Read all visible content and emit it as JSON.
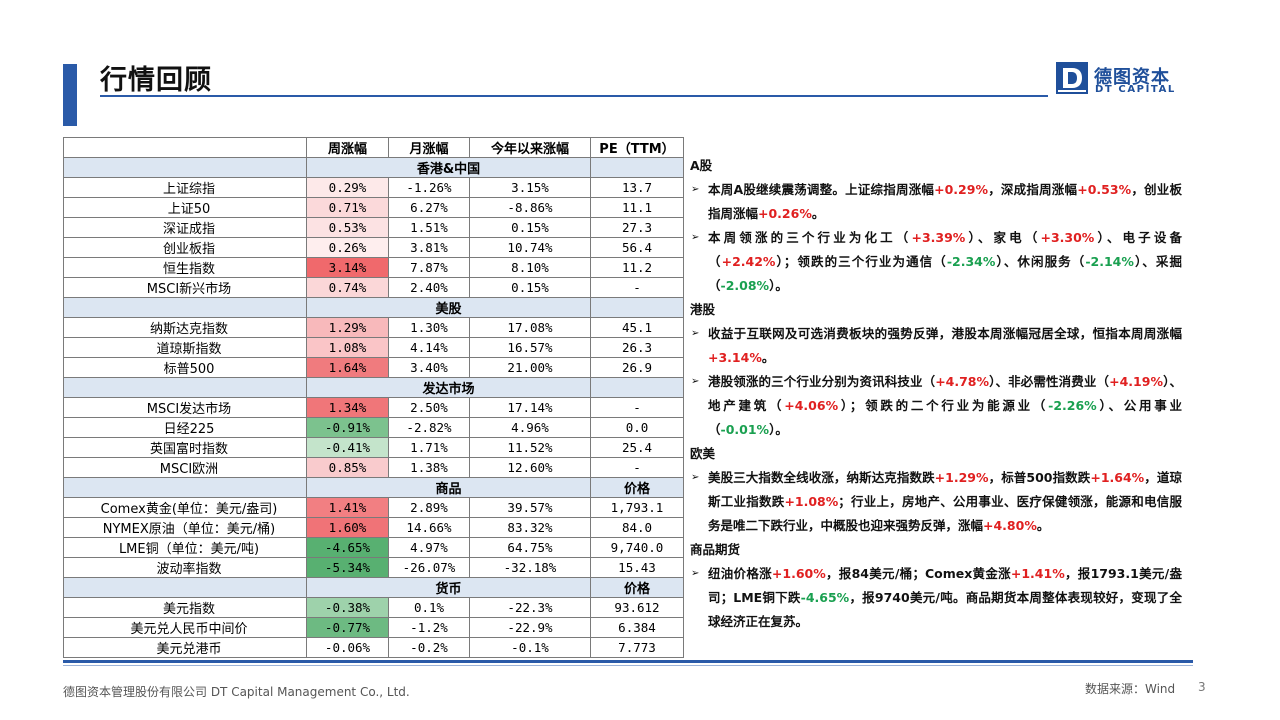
{
  "title": "行情回顾",
  "logo": {
    "cn": "德图资本",
    "en": "DT CAPITAL",
    "mark_color": "#1f4f9a"
  },
  "table": {
    "headers": [
      "",
      "周涨幅",
      "月涨幅",
      "今年以来涨幅",
      "PE（TTM）"
    ],
    "sections": [
      {
        "title": "香港&中国",
        "last_header": "",
        "rows": [
          {
            "name": "上证综指",
            "w": "0.29%",
            "m": "-1.26%",
            "y": "3.15%",
            "pe": "13.7",
            "wc": "#fde9e9"
          },
          {
            "name": "上证50",
            "w": "0.71%",
            "m": "6.27%",
            "y": "-8.86%",
            "pe": "11.1",
            "wc": "#fbd9da"
          },
          {
            "name": "深证成指",
            "w": "0.53%",
            "m": "1.51%",
            "y": "0.15%",
            "pe": "27.3",
            "wc": "#fce2e3"
          },
          {
            "name": "创业板指",
            "w": "0.26%",
            "m": "3.81%",
            "y": "10.74%",
            "pe": "56.4",
            "wc": "#feeeee"
          },
          {
            "name": "恒生指数",
            "w": "3.14%",
            "m": "7.87%",
            "y": "8.10%",
            "pe": "11.2",
            "wc": "#f0696c"
          },
          {
            "name": "MSCI新兴市场",
            "w": "0.74%",
            "m": "2.40%",
            "y": "0.15%",
            "pe": "-",
            "wc": "#fbd7d8"
          }
        ]
      },
      {
        "title": "美股",
        "last_header": "",
        "rows": [
          {
            "name": "纳斯达克指数",
            "w": "1.29%",
            "m": "1.30%",
            "y": "17.08%",
            "pe": "45.1",
            "wc": "#f8b9bb"
          },
          {
            "name": "道琼斯指数",
            "w": "1.08%",
            "m": "4.14%",
            "y": "16.57%",
            "pe": "26.3",
            "wc": "#fac5c7"
          },
          {
            "name": "标普500",
            "w": "1.64%",
            "m": "3.40%",
            "y": "21.00%",
            "pe": "26.9",
            "wc": "#f07b7e"
          }
        ]
      },
      {
        "title": "发达市场",
        "last_header": "",
        "rows": [
          {
            "name": "MSCI发达市场",
            "w": "1.34%",
            "m": "2.50%",
            "y": "17.14%",
            "pe": "-",
            "wc": "#f07679"
          },
          {
            "name": "日经225",
            "w": "-0.91%",
            "m": "-2.82%",
            "y": "4.96%",
            "pe": "0.0",
            "wc": "#7cc28e"
          },
          {
            "name": "英国富时指数",
            "w": "-0.41%",
            "m": "1.71%",
            "y": "11.52%",
            "pe": "25.4",
            "wc": "#c4e4cb"
          },
          {
            "name": "MSCI欧洲",
            "w": "0.85%",
            "m": "1.38%",
            "y": "12.60%",
            "pe": "-",
            "wc": "#f9cbcd"
          }
        ]
      },
      {
        "title": "商品",
        "last_header": "价格",
        "rows": [
          {
            "name": "Comex黄金(单位：美元/盎司)",
            "w": "1.41%",
            "m": "2.89%",
            "y": "39.57%",
            "pe": "1,793.1",
            "wc": "#f27f82"
          },
          {
            "name": "NYMEX原油（单位：美元/桶)",
            "w": "1.60%",
            "m": "14.66%",
            "y": "83.32%",
            "pe": "84.0",
            "wc": "#f07377"
          },
          {
            "name": "LME铜（单位：美元/吨)",
            "w": "-4.65%",
            "m": "4.97%",
            "y": "64.75%",
            "pe": "9,740.0",
            "wc": "#58b071"
          },
          {
            "name": "波动率指数",
            "w": "-5.34%",
            "m": "-26.07%",
            "y": "-32.18%",
            "pe": "15.43",
            "wc": "#58b071"
          }
        ]
      },
      {
        "title": "货币",
        "last_header": "价格",
        "rows": [
          {
            "name": "美元指数",
            "w": "-0.38%",
            "m": "0.1%",
            "y": "-22.3%",
            "pe": "93.612",
            "wc": "#9ed2ab"
          },
          {
            "name": "美元兑人民币中间价",
            "w": "-0.77%",
            "m": "-1.2%",
            "y": "-22.9%",
            "pe": "6.384",
            "wc": "#6dba82"
          },
          {
            "name": "美元兑港币",
            "w": "-0.06%",
            "m": "-0.2%",
            "y": "-0.1%",
            "pe": "7.773",
            "wc": "#ffffff"
          }
        ]
      }
    ]
  },
  "commentary": [
    {
      "head": "A股",
      "bullets": [
        [
          [
            "本周A股继续震荡调整。上证综指周涨幅",
            ""
          ],
          [
            "+0.29%",
            "up"
          ],
          [
            "，深成指周涨幅",
            ""
          ],
          [
            "+0.53%",
            "up"
          ],
          [
            "，创业板指周涨幅",
            ""
          ],
          [
            "+0.26%",
            "up"
          ],
          [
            "。",
            ""
          ]
        ],
        [
          [
            "本周领涨的三个行业为化工（",
            ""
          ],
          [
            "+3.39%",
            "up"
          ],
          [
            "）、家电（",
            ""
          ],
          [
            "+3.30%",
            "up"
          ],
          [
            "）、电子设备（",
            ""
          ],
          [
            "+2.42%",
            "up"
          ],
          [
            "）；领跌的三个行业为通信（",
            ""
          ],
          [
            "-2.34%",
            "down"
          ],
          [
            "）、休闲服务（",
            ""
          ],
          [
            "-2.14%",
            "down"
          ],
          [
            "）、采掘（",
            ""
          ],
          [
            "-2.08%",
            "down"
          ],
          [
            "）。",
            ""
          ]
        ]
      ]
    },
    {
      "head": "港股",
      "bullets": [
        [
          [
            "收益于互联网及可选消费板块的强势反弹，港股本周涨幅冠居全球，恒指本周周涨幅",
            ""
          ],
          [
            "+3.14%",
            "up"
          ],
          [
            "。",
            ""
          ]
        ],
        [
          [
            "港股领涨的三个行业分别为资讯科技业（",
            ""
          ],
          [
            "+4.78%",
            "up"
          ],
          [
            "）、非必需性消费业（",
            ""
          ],
          [
            "+4.19%",
            "up"
          ],
          [
            "）、地产建筑（",
            ""
          ],
          [
            "+4.06%",
            "up"
          ],
          [
            "）；领跌的二个行业为能源业（",
            ""
          ],
          [
            "-2.26%",
            "down"
          ],
          [
            "）、公用事业（",
            ""
          ],
          [
            "-0.01%",
            "down"
          ],
          [
            "）。",
            ""
          ]
        ]
      ]
    },
    {
      "head": "欧美",
      "bullets": [
        [
          [
            "美股三大指数全线收涨，纳斯达克指数跌",
            ""
          ],
          [
            "+1.29%",
            "up"
          ],
          [
            "，标普500指数跌",
            ""
          ],
          [
            "+1.64%",
            "up"
          ],
          [
            "，道琼斯工业指数跌",
            ""
          ],
          [
            "+1.08%",
            "up"
          ],
          [
            "；行业上，房地产、公用事业、医疗保健领涨，能源和电信服务是唯二下跌行业，中概股也迎来强势反弹，涨幅",
            ""
          ],
          [
            "+4.80%",
            "up"
          ],
          [
            "。",
            ""
          ]
        ]
      ]
    },
    {
      "head": "商品期货",
      "bullets": [
        [
          [
            "纽油价格涨",
            ""
          ],
          [
            "+1.60%",
            "up"
          ],
          [
            "，报84美元/桶；Comex黄金涨",
            ""
          ],
          [
            "+1.41%",
            "up"
          ],
          [
            "，报1793.1美元/盎司；LME铜下跌",
            ""
          ],
          [
            "-4.65%",
            "down"
          ],
          [
            "，报9740美元/吨。商品期货本周整体表现较好，变现了全球经济正在复苏。",
            ""
          ]
        ]
      ]
    }
  ],
  "footer": {
    "company": "德图资本管理股份有限公司 DT Capital Management Co., Ltd.",
    "source": "数据来源：Wind",
    "page": "3"
  }
}
